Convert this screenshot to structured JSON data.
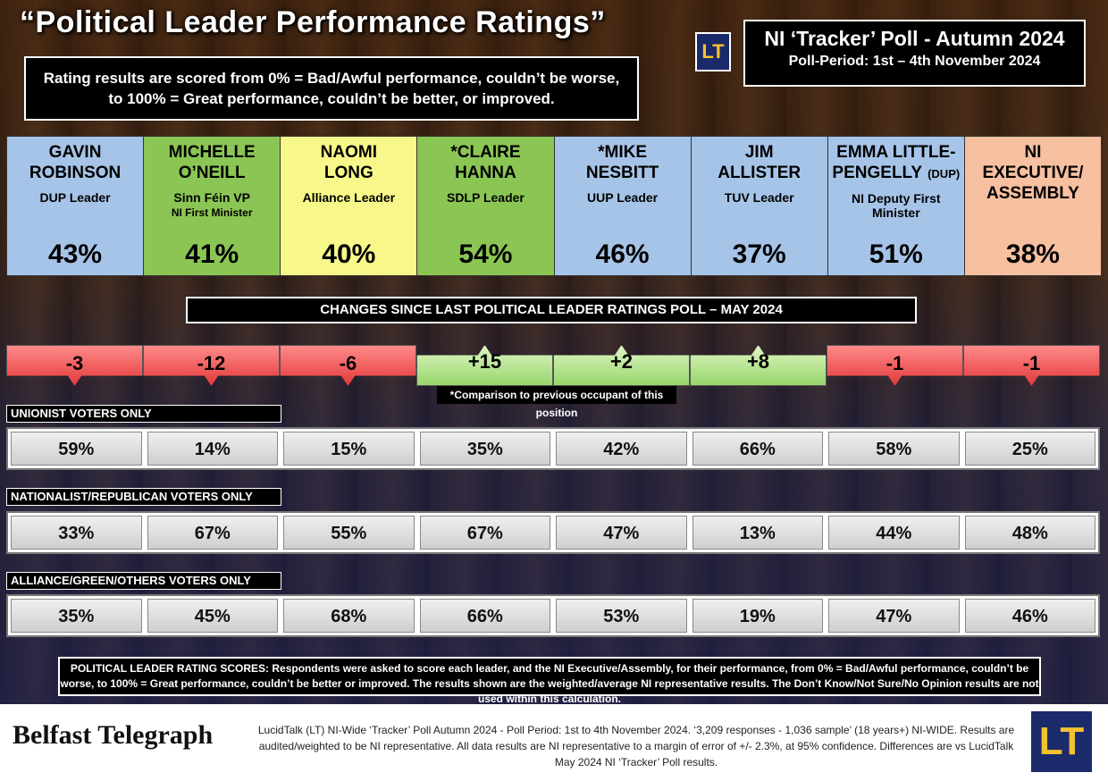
{
  "title": "“Political Leader Performance Ratings”",
  "intro": {
    "line1": "Rating results are scored from 0% = Bad/Awful performance, couldn’t be worse,",
    "line2": "to 100% = Great performance, couldn’t be better, or improved."
  },
  "logo_text": "LT",
  "poll": {
    "heading": "NI ‘Tracker’ Poll - Autumn 2024",
    "period": "Poll-Period: 1st – 4th November 2024"
  },
  "leaders": [
    {
      "name1": "GAVIN",
      "name2": "ROBINSON",
      "role": "DUP Leader",
      "role2": "",
      "rating": "43%",
      "color": "#a6c4e8"
    },
    {
      "name1": "MICHELLE",
      "name2": "O’NEILL",
      "role": "Sinn Féin VP",
      "role2": "NI First Minister",
      "rating": "41%",
      "color": "#8bc654"
    },
    {
      "name1": "NAOMI",
      "name2": "LONG",
      "role": "Alliance Leader",
      "role2": "",
      "rating": "40%",
      "color": "#f8f88a"
    },
    {
      "name1": "*CLAIRE",
      "name2": "HANNA",
      "role": "SDLP Leader",
      "role2": "",
      "rating": "54%",
      "color": "#8bc654"
    },
    {
      "name1": "*MIKE",
      "name2": "NESBITT",
      "role": "UUP Leader",
      "role2": "",
      "rating": "46%",
      "color": "#a6c4e8"
    },
    {
      "name1": "JIM",
      "name2": "ALLISTER",
      "role": "TUV Leader",
      "role2": "",
      "rating": "37%",
      "color": "#a6c4e8"
    },
    {
      "name1": "EMMA LITTLE-",
      "name2": "PENGELLY",
      "name_suffix": "(DUP)",
      "role": "NI Deputy First Minister",
      "role2": "",
      "rating": "51%",
      "color": "#a6c4e8"
    },
    {
      "name1": "NI",
      "name2": "EXECUTIVE/",
      "name3": "ASSEMBLY",
      "role": "",
      "role2": "",
      "rating": "38%",
      "color": "#f7c0a0"
    }
  ],
  "changes_heading": "CHANGES SINCE LAST POLITICAL LEADER RATINGS POLL – MAY 2024",
  "changes": [
    {
      "value": "-3",
      "direction": "down"
    },
    {
      "value": "-12",
      "direction": "down"
    },
    {
      "value": "-6",
      "direction": "down"
    },
    {
      "value": "+15",
      "direction": "up"
    },
    {
      "value": "+2",
      "direction": "up"
    },
    {
      "value": "+8",
      "direction": "up"
    },
    {
      "value": "-1",
      "direction": "down"
    },
    {
      "value": "-1",
      "direction": "down"
    }
  ],
  "comparison_note": "*Comparison to previous occupant of this position",
  "segments": [
    {
      "label": "UNIONIST VOTERS ONLY",
      "values": [
        "59%",
        "14%",
        "15%",
        "35%",
        "42%",
        "66%",
        "58%",
        "25%"
      ]
    },
    {
      "label": "NATIONALIST/REPUBLICAN VOTERS ONLY",
      "values": [
        "33%",
        "67%",
        "55%",
        "67%",
        "47%",
        "13%",
        "44%",
        "48%"
      ]
    },
    {
      "label": "ALLIANCE/GREEN/OTHERS VOTERS ONLY",
      "values": [
        "35%",
        "45%",
        "68%",
        "66%",
        "53%",
        "19%",
        "47%",
        "46%"
      ]
    }
  ],
  "notes": "POLITICAL LEADER RATING SCORES: Respondents were asked to score each leader, and the NI Executive/Assembly, for their performance, from 0% = Bad/Awful performance, couldn’t be worse, to 100% = Great performance, couldn’t be better or improved. The results shown are the weighted/average NI representative results. The Don’t Know/Not Sure/No Opinion results are not used within this calculation.",
  "footer": {
    "brand": "Belfast Telegraph",
    "text": "LucidTalk (LT) NI-Wide ‘Tracker’ Poll Autumn 2024 - Poll Period: 1st to 4th November 2024.  ‘3,209 responses - 1,036 sample’ (18 years+) NI-WIDE. Results are audited/weighted to be NI representative. All data results are NI representative to a margin of error of +/- 2.3%, at 95% confidence. Differences are vs LucidTalk May 2024 NI ‘Tracker’ Poll results."
  }
}
